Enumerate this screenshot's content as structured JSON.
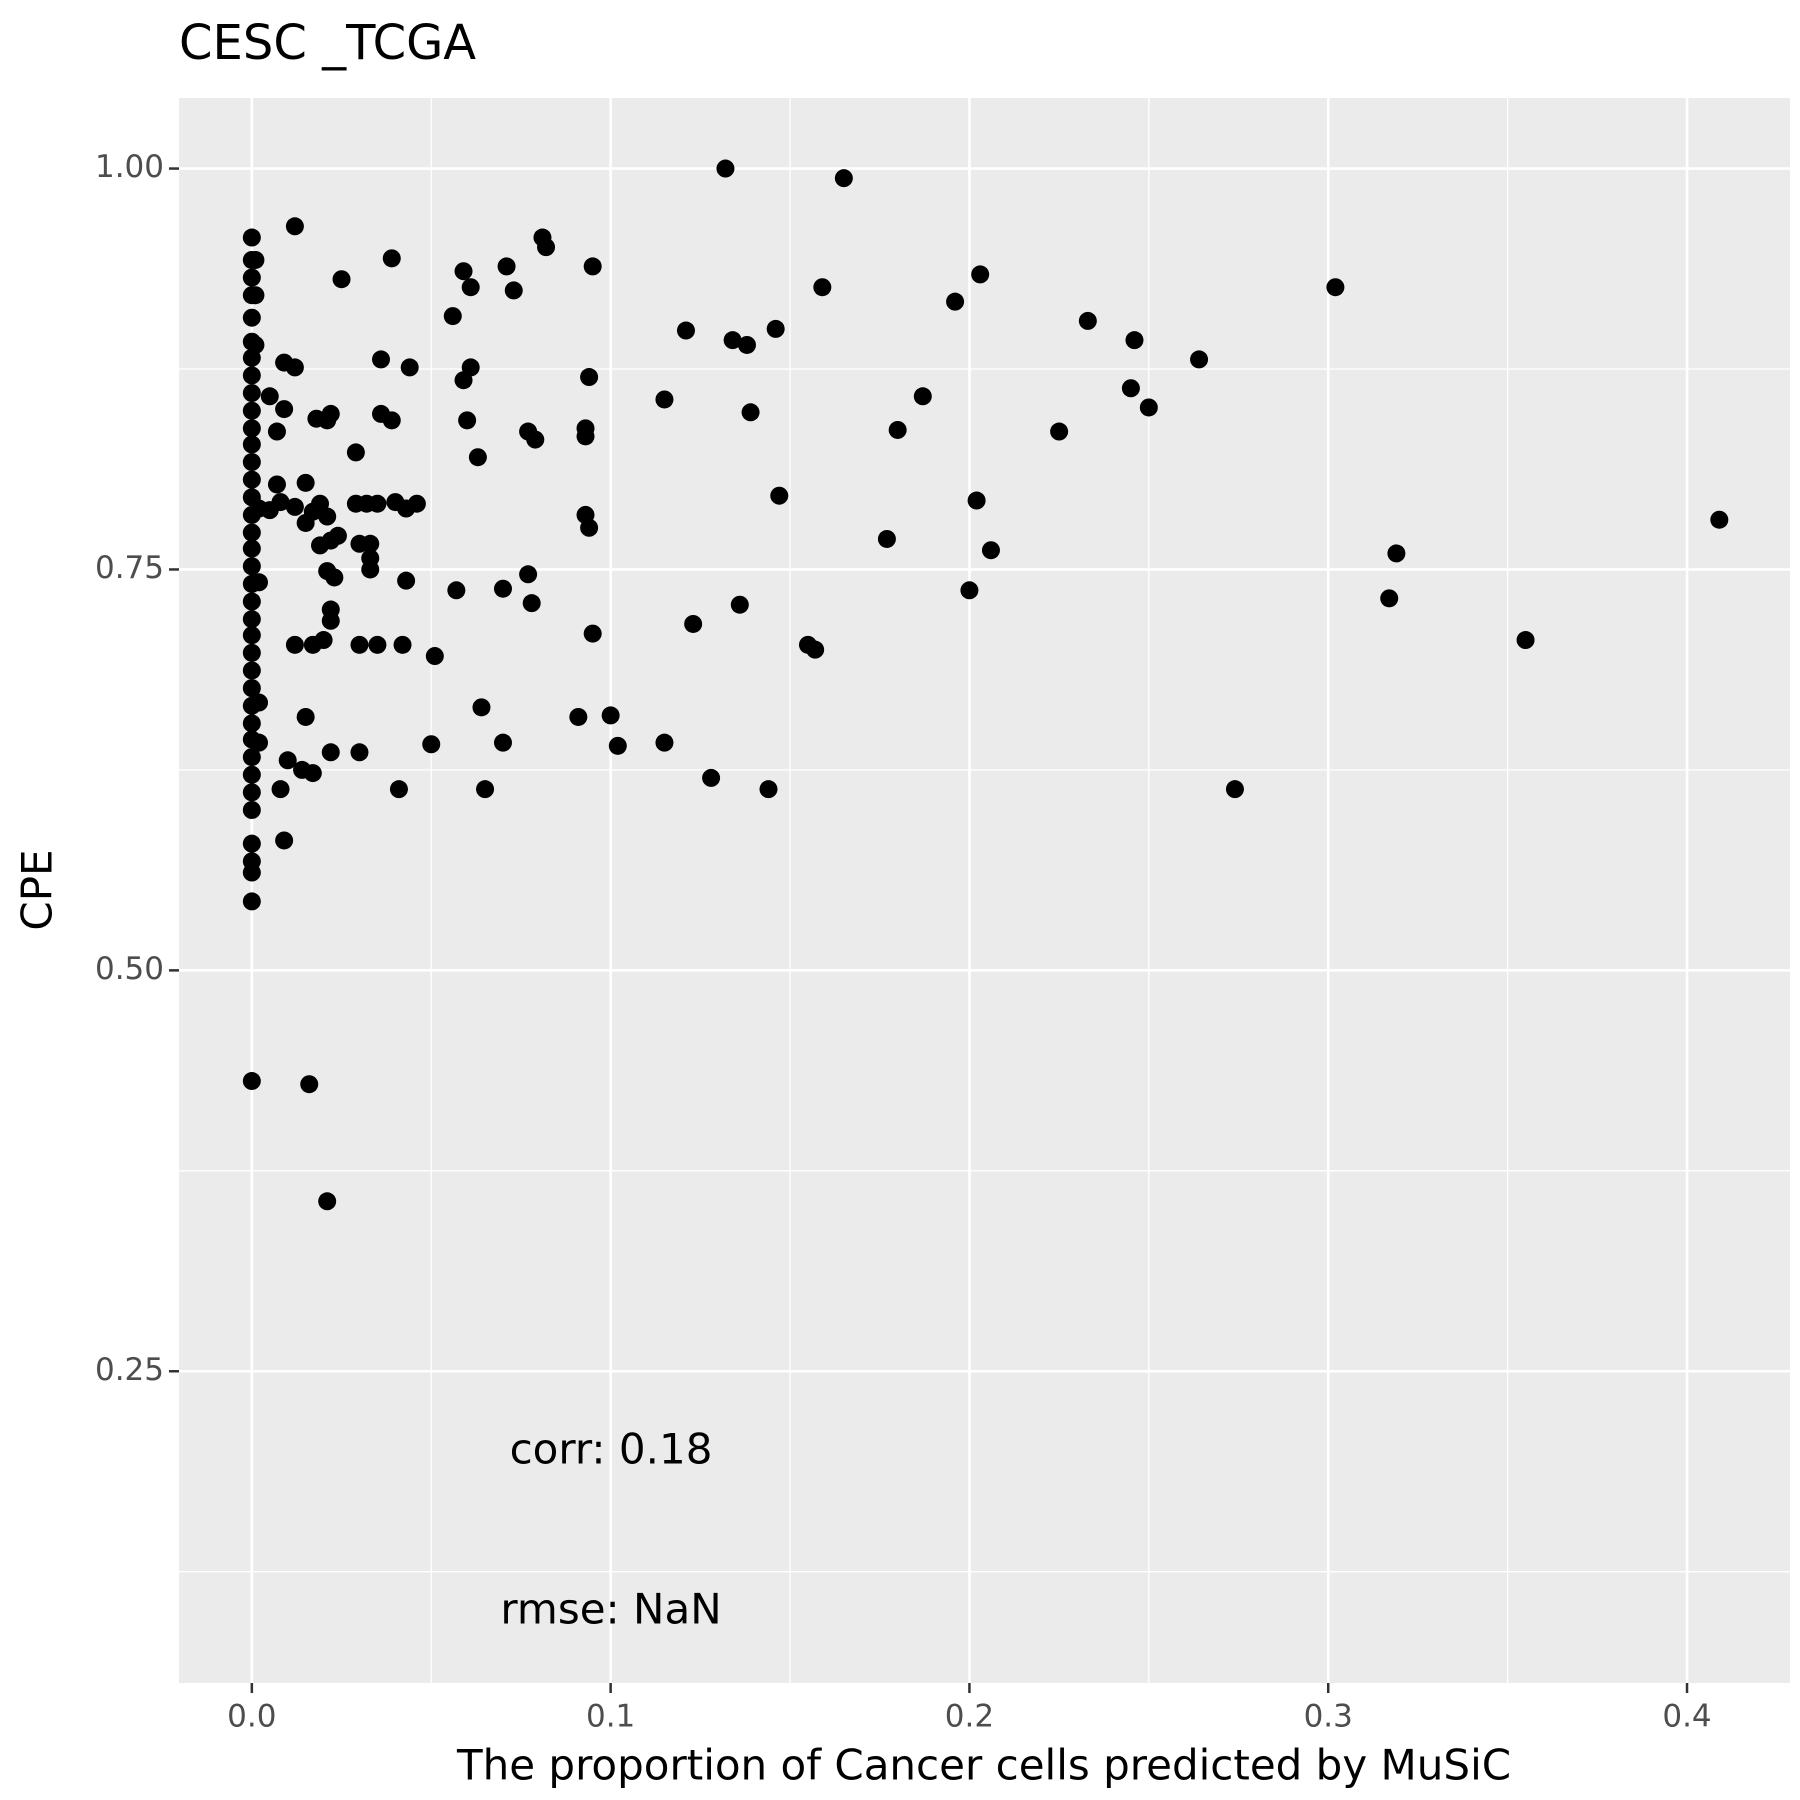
{
  "chart_data": {
    "type": "scatter",
    "title": "CESC _TCGA",
    "x_label": "The proportion of Cancer cells predicted by MuSiC",
    "y_label": "CPE",
    "annotations": [
      "corr: 0.18",
      "rmse: NaN"
    ],
    "color": "#000000",
    "grid": true,
    "xlim": [
      -0.0203,
      0.4287
    ],
    "ylim": [
      0.0556,
      1.044
    ],
    "xticks": [
      {
        "value": 0,
        "label": "0.0"
      },
      0.1,
      0.2,
      0.3,
      0.4
    ],
    "yticks": [
      {
        "value": 0.25,
        "label": "0.25"
      },
      {
        "value": 0.5,
        "label": "0.50"
      },
      {
        "value": 0.75,
        "label": "0.75"
      },
      {
        "value": 1,
        "label": "1.00"
      }
    ],
    "x": [
      0,
      0,
      0,
      0,
      0,
      0,
      0,
      0,
      0,
      0,
      0,
      0,
      0,
      0,
      0,
      0,
      0,
      0,
      0,
      0,
      0,
      0,
      0,
      0,
      0,
      0,
      0,
      0,
      0,
      0,
      0,
      0,
      0,
      0,
      0,
      0,
      0,
      0,
      0.001,
      0.001,
      0.001,
      0.002,
      0.002,
      0.002,
      0.002,
      0.012,
      0.025,
      0.005,
      0.009,
      0.012,
      0.009,
      0.007,
      0.007,
      0.008,
      0.012,
      0.012,
      0.005,
      0.015,
      0.015,
      0.018,
      0.022,
      0.021,
      0.019,
      0.021,
      0.017,
      0.019,
      0.024,
      0.022,
      0.021,
      0.023,
      0.022,
      0.022,
      0.02,
      0.017,
      0.015,
      0.01,
      0.014,
      0.017,
      0.008,
      0.009,
      0.022,
      0.03,
      0.016,
      0.021,
      0.029,
      0.029,
      0.032,
      0.035,
      0.04,
      0.043,
      0.046,
      0.03,
      0.033,
      0.033,
      0.033,
      0.03,
      0.035,
      0.042,
      0.043,
      0.036,
      0.039,
      0.044,
      0.036,
      0.039,
      0.041,
      0.05,
      0.051,
      0.056,
      0.059,
      0.061,
      0.061,
      0.059,
      0.06,
      0.063,
      0.057,
      0.07,
      0.064,
      0.065,
      0.07,
      0.071,
      0.073,
      0.081,
      0.082,
      0.077,
      0.079,
      0.077,
      0.078,
      0.095,
      0.094,
      0.093,
      0.093,
      0.093,
      0.094,
      0.095,
      0.091,
      0.1,
      0.102,
      0.115,
      0.121,
      0.115,
      0.123,
      0.128,
      0.132,
      0.134,
      0.138,
      0.146,
      0.139,
      0.136,
      0.144,
      0.147,
      0.155,
      0.157,
      0.159,
      0.165,
      0.177,
      0.18,
      0.187,
      0.196,
      0.203,
      0.202,
      0.2,
      0.206,
      0.225,
      0.233,
      0.246,
      0.245,
      0.25,
      0.264,
      0.274,
      0.302,
      0.317,
      0.319,
      0.355,
      0.409
    ],
    "values": [
      0.957,
      0.943,
      0.932,
      0.921,
      0.907,
      0.892,
      0.882,
      0.871,
      0.86,
      0.849,
      0.838,
      0.828,
      0.817,
      0.806,
      0.795,
      0.784,
      0.773,
      0.763,
      0.752,
      0.741,
      0.73,
      0.719,
      0.709,
      0.698,
      0.687,
      0.676,
      0.665,
      0.654,
      0.644,
      0.633,
      0.622,
      0.611,
      0.6,
      0.579,
      0.568,
      0.561,
      0.543,
      0.431,
      0.943,
      0.921,
      0.89,
      0.788,
      0.742,
      0.667,
      0.642,
      0.964,
      0.931,
      0.858,
      0.879,
      0.876,
      0.85,
      0.836,
      0.803,
      0.792,
      0.789,
      0.703,
      0.787,
      0.804,
      0.779,
      0.844,
      0.847,
      0.843,
      0.791,
      0.783,
      0.786,
      0.765,
      0.771,
      0.768,
      0.749,
      0.745,
      0.725,
      0.718,
      0.706,
      0.703,
      0.658,
      0.631,
      0.625,
      0.623,
      0.613,
      0.581,
      0.636,
      0.636,
      0.429,
      0.356,
      0.823,
      0.791,
      0.791,
      0.791,
      0.792,
      0.788,
      0.791,
      0.766,
      0.766,
      0.757,
      0.75,
      0.703,
      0.703,
      0.703,
      0.743,
      0.881,
      0.944,
      0.876,
      0.847,
      0.843,
      0.613,
      0.641,
      0.696,
      0.908,
      0.936,
      0.926,
      0.876,
      0.868,
      0.843,
      0.82,
      0.737,
      0.738,
      0.664,
      0.613,
      0.642,
      0.939,
      0.924,
      0.957,
      0.951,
      0.836,
      0.831,
      0.747,
      0.729,
      0.939,
      0.87,
      0.838,
      0.833,
      0.784,
      0.776,
      0.71,
      0.658,
      0.659,
      0.64,
      0.856,
      0.899,
      0.642,
      0.716,
      0.62,
      1.0,
      0.893,
      0.89,
      0.9,
      0.848,
      0.728,
      0.613,
      0.796,
      0.703,
      0.7,
      0.926,
      0.994,
      0.769,
      0.837,
      0.858,
      0.917,
      0.934,
      0.793,
      0.737,
      0.762,
      0.836,
      0.905,
      0.893,
      0.863,
      0.851,
      0.881,
      0.613,
      0.926,
      0.732,
      0.76,
      0.706,
      0.781
    ]
  }
}
